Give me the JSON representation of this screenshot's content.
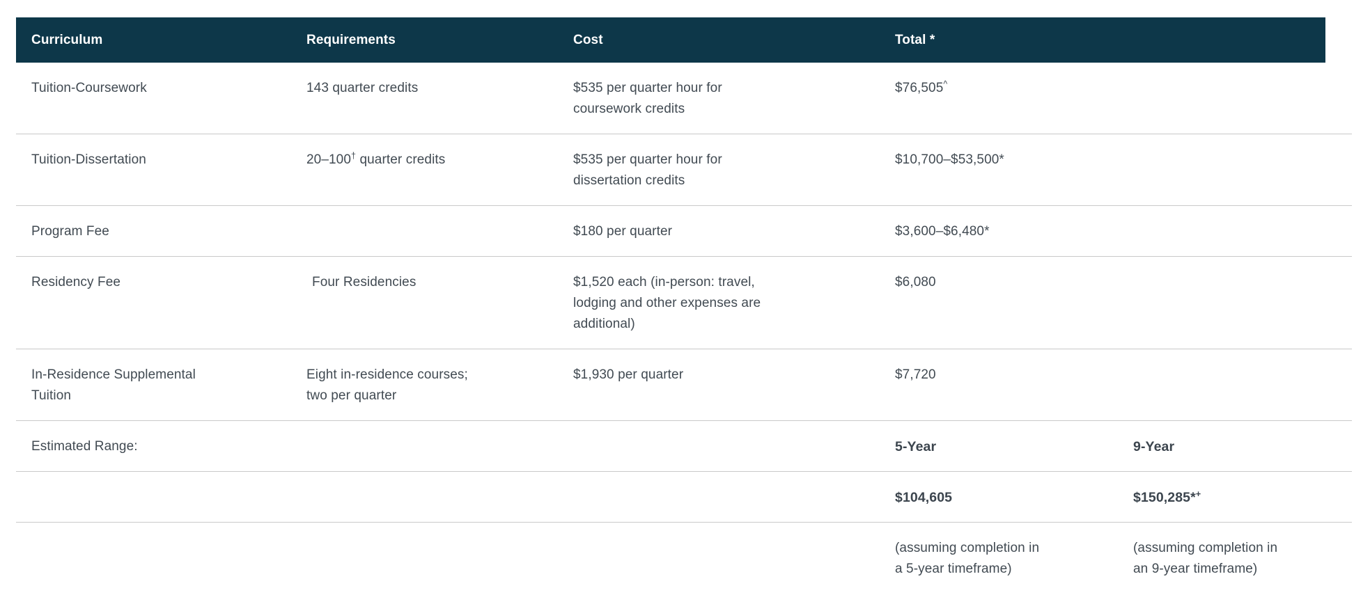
{
  "colors": {
    "header_background": "#0d3749",
    "header_text": "#ffffff",
    "body_text": "#414a52",
    "divider": "#c9c9c9"
  },
  "table": {
    "header": {
      "curriculum": "Curriculum",
      "requirements": "Requirements",
      "cost": "Cost",
      "total": "Total *",
      "extra": ""
    },
    "rows": [
      {
        "curriculum": "Tuition-Coursework",
        "requirements": "143 quarter credits",
        "cost": "$535 per quarter hour for\ncoursework credits",
        "total": "$76,505",
        "total_sup": "^"
      },
      {
        "curriculum": "Tuition-Dissertation",
        "requirements": "20–100",
        "requirements_sup": "†",
        "requirements_after": " quarter credits",
        "cost": "$535 per quarter hour for\ndissertation credits",
        "total": "$10,700–$53,500*"
      },
      {
        "curriculum": "Program Fee",
        "requirements": "",
        "cost": "$180 per quarter",
        "total": "$3,600–$6,480*"
      },
      {
        "curriculum": "Residency Fee",
        "requirements": "Four Residencies",
        "cost": "$1,520 each (in-person: travel,\nlodging and other expenses are\nadditional)",
        "total": "$6,080"
      },
      {
        "curriculum": "In-Residence Supplemental\nTuition",
        "requirements": "Eight in-residence courses;\ntwo per quarter",
        "cost": "$1,930 per quarter",
        "total": "$7,720"
      }
    ],
    "summary": {
      "label": "Estimated Range:",
      "five_year_header": "5-Year",
      "nine_year_header": "9-Year",
      "five_year_amount": "$104,605",
      "nine_year_amount": "$150,285*",
      "nine_year_amount_sup": "+",
      "five_year_note": "(assuming completion in\na 5-year timeframe)",
      "nine_year_note": "(assuming completion in\nan 9-year timeframe)"
    }
  }
}
